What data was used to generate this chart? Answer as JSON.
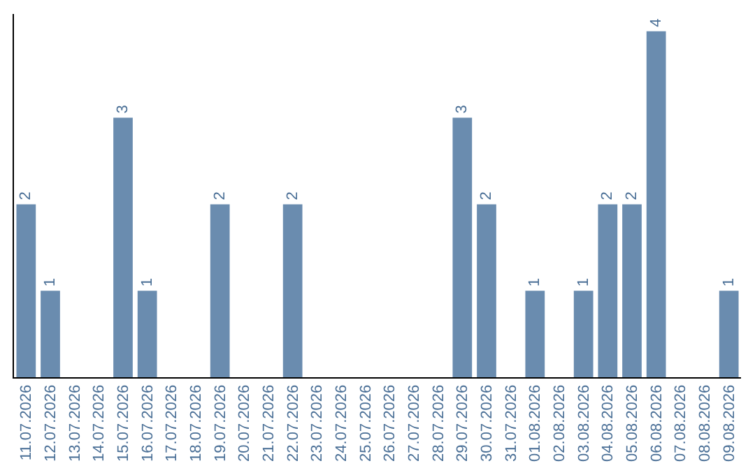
{
  "chart_data": {
    "type": "bar",
    "categories": [
      "11.07.2026",
      "12.07.2026",
      "13.07.2026",
      "14.07.2026",
      "15.07.2026",
      "16.07.2026",
      "17.07.2026",
      "18.07.2026",
      "19.07.2026",
      "20.07.2026",
      "21.07.2026",
      "22.07.2026",
      "23.07.2026",
      "24.07.2026",
      "25.07.2026",
      "26.07.2026",
      "27.07.2026",
      "28.07.2026",
      "29.07.2026",
      "30.07.2026",
      "31.07.2026",
      "01.08.2026",
      "02.08.2026",
      "03.08.2026",
      "04.08.2026",
      "05.08.2026",
      "06.08.2026",
      "07.08.2026",
      "08.08.2026",
      "09.08.2026"
    ],
    "values": [
      2,
      1,
      0,
      0,
      3,
      1,
      0,
      0,
      2,
      0,
      0,
      2,
      0,
      0,
      0,
      0,
      0,
      0,
      3,
      2,
      0,
      1,
      0,
      1,
      2,
      2,
      4,
      0,
      0,
      1
    ],
    "value_labels": [
      "2",
      "1",
      null,
      null,
      "3",
      "1",
      null,
      null,
      "2",
      null,
      null,
      "2",
      null,
      null,
      null,
      null,
      null,
      null,
      "3",
      "2",
      null,
      "1",
      null,
      "1",
      "2",
      "2",
      "4",
      null,
      null,
      "1"
    ],
    "color": "#6a8caf",
    "ylim": [
      0,
      4.2
    ],
    "tick_labels": "x",
    "grid": false
  }
}
